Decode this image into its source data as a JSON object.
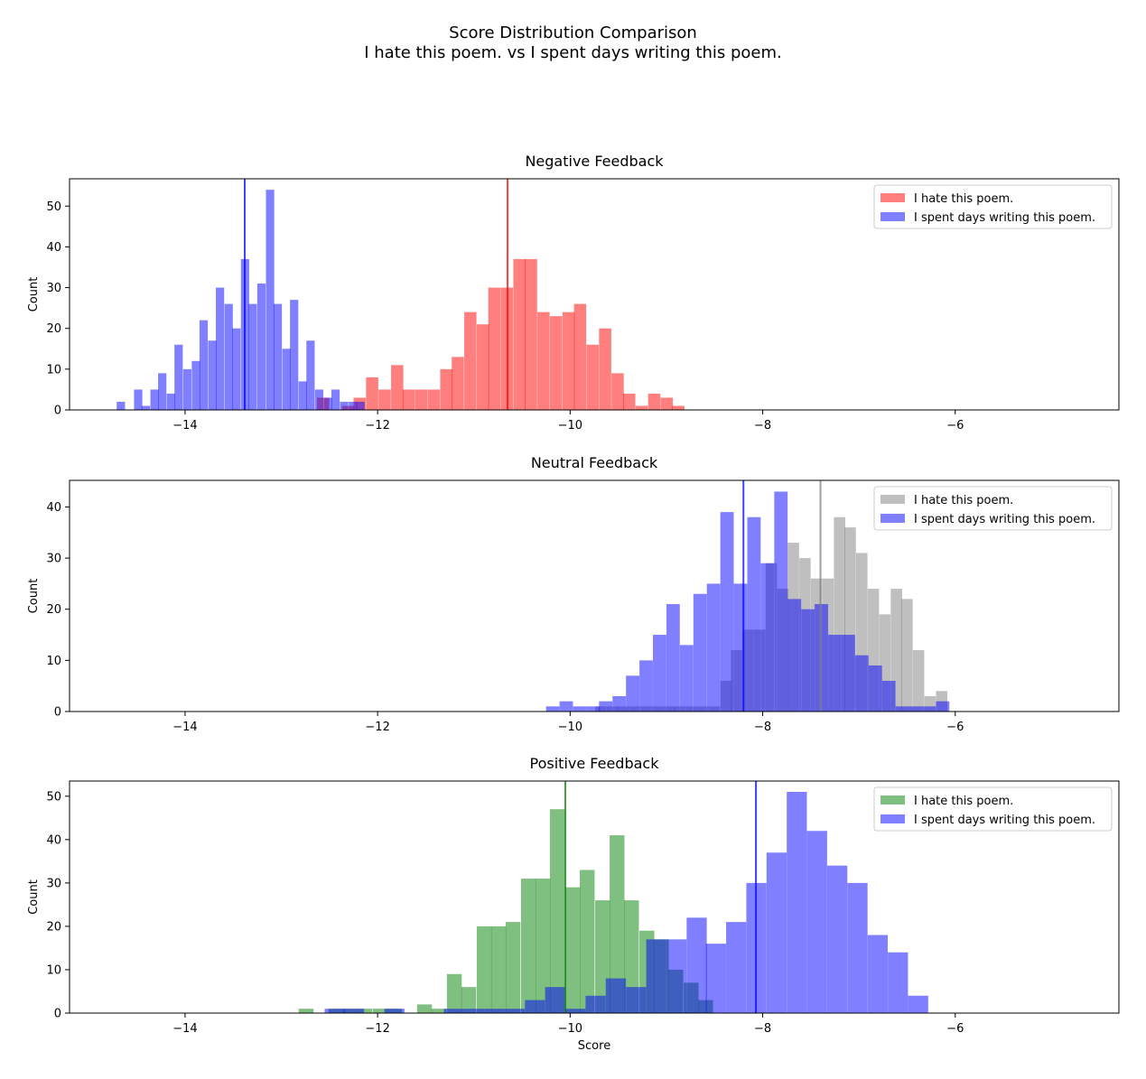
{
  "figure": {
    "title_line1": "Score Distribution Comparison",
    "title_line2": "I hate this poem. vs I spent days writing this poem.",
    "xlabel": "Score"
  },
  "chart_data": [
    {
      "type": "bar",
      "title": "Negative Feedback",
      "ylabel": "Count",
      "xlim": [
        -15.2,
        -4.3
      ],
      "ylim": [
        0,
        56.7
      ],
      "xticks": [
        -14,
        -12,
        -10,
        -8,
        -6
      ],
      "yticks": [
        0,
        10,
        20,
        30,
        40,
        50
      ],
      "legend_position": "top-right",
      "series": [
        {
          "name": "I hate this poem.",
          "color": "#ff0000",
          "alpha": 0.5,
          "mean": -10.65,
          "bin_width": 0.127,
          "bins": [
            [
              -12.63,
              3
            ],
            [
              -12.37,
              1
            ],
            [
              -12.25,
              3
            ],
            [
              -12.12,
              8
            ],
            [
              -11.99,
              5
            ],
            [
              -11.86,
              11
            ],
            [
              -11.74,
              5
            ],
            [
              -11.61,
              5
            ],
            [
              -11.48,
              5
            ],
            [
              -11.35,
              10
            ],
            [
              -11.23,
              13
            ],
            [
              -11.1,
              24
            ],
            [
              -10.97,
              21
            ],
            [
              -10.85,
              30
            ],
            [
              -10.72,
              30
            ],
            [
              -10.59,
              37
            ],
            [
              -10.47,
              37
            ],
            [
              -10.34,
              24
            ],
            [
              -10.21,
              23
            ],
            [
              -10.08,
              24
            ],
            [
              -9.96,
              26
            ],
            [
              -9.83,
              16
            ],
            [
              -9.7,
              20
            ],
            [
              -9.57,
              9
            ],
            [
              -9.45,
              4
            ],
            [
              -9.32,
              1
            ],
            [
              -9.19,
              4
            ],
            [
              -9.06,
              3
            ],
            [
              -8.94,
              1
            ]
          ]
        },
        {
          "name": "I spent days writing this poem.",
          "color": "#0000ff",
          "alpha": 0.5,
          "mean": -13.38,
          "bin_width": 0.086,
          "bins": [
            [
              -14.71,
              2
            ],
            [
              -14.53,
              5
            ],
            [
              -14.45,
              1
            ],
            [
              -14.36,
              5
            ],
            [
              -14.28,
              9
            ],
            [
              -14.19,
              4
            ],
            [
              -14.11,
              16
            ],
            [
              -14.02,
              10
            ],
            [
              -13.93,
              12
            ],
            [
              -13.85,
              22
            ],
            [
              -13.76,
              17
            ],
            [
              -13.68,
              30
            ],
            [
              -13.59,
              26
            ],
            [
              -13.51,
              20
            ],
            [
              -13.42,
              37
            ],
            [
              -13.34,
              26
            ],
            [
              -13.25,
              31
            ],
            [
              -13.16,
              54
            ],
            [
              -13.08,
              26
            ],
            [
              -12.99,
              15
            ],
            [
              -12.91,
              27
            ],
            [
              -12.82,
              7
            ],
            [
              -12.74,
              17
            ],
            [
              -12.65,
              5
            ],
            [
              -12.56,
              3
            ],
            [
              -12.48,
              5
            ],
            [
              -12.39,
              2
            ],
            [
              -12.3,
              2
            ],
            [
              -12.22,
              2
            ]
          ]
        }
      ]
    },
    {
      "type": "bar",
      "title": "Neutral Feedback",
      "ylabel": "Count",
      "xlim": [
        -15.2,
        -4.3
      ],
      "ylim": [
        0,
        45.2
      ],
      "xticks": [
        -14,
        -12,
        -10,
        -8,
        -6
      ],
      "yticks": [
        0,
        10,
        20,
        30,
        40
      ],
      "legend_position": "top-right",
      "series": [
        {
          "name": "I hate this poem.",
          "color": "#808080",
          "alpha": 0.5,
          "mean": -7.4,
          "bin_width": 0.118,
          "bins": [
            [
              -9.74,
              1
            ],
            [
              -9.62,
              1
            ],
            [
              -9.51,
              1
            ],
            [
              -9.39,
              1
            ],
            [
              -9.27,
              1
            ],
            [
              -9.15,
              1
            ],
            [
              -9.03,
              1
            ],
            [
              -8.92,
              1
            ],
            [
              -8.8,
              1
            ],
            [
              -8.68,
              1
            ],
            [
              -8.56,
              1
            ],
            [
              -8.44,
              6
            ],
            [
              -8.33,
              12
            ],
            [
              -8.21,
              16
            ],
            [
              -8.09,
              16
            ],
            [
              -7.97,
              29
            ],
            [
              -7.85,
              24
            ],
            [
              -7.74,
              33
            ],
            [
              -7.62,
              30
            ],
            [
              -7.5,
              26
            ],
            [
              -7.38,
              26
            ],
            [
              -7.26,
              38
            ],
            [
              -7.15,
              36
            ],
            [
              -7.03,
              31
            ],
            [
              -6.91,
              24
            ],
            [
              -6.79,
              19
            ],
            [
              -6.67,
              24
            ],
            [
              -6.56,
              22
            ],
            [
              -6.44,
              12
            ],
            [
              -6.32,
              3
            ],
            [
              -6.2,
              4
            ]
          ]
        },
        {
          "name": "I spent days writing this poem.",
          "color": "#0000ff",
          "alpha": 0.5,
          "mean": -8.2,
          "bin_width": 0.139,
          "bins": [
            [
              -10.25,
              1
            ],
            [
              -10.11,
              2
            ],
            [
              -9.97,
              1
            ],
            [
              -9.83,
              1
            ],
            [
              -9.7,
              2
            ],
            [
              -9.56,
              3
            ],
            [
              -9.42,
              7
            ],
            [
              -9.28,
              10
            ],
            [
              -9.14,
              15
            ],
            [
              -9.0,
              21
            ],
            [
              -8.86,
              13
            ],
            [
              -8.72,
              23
            ],
            [
              -8.58,
              25
            ],
            [
              -8.44,
              39
            ],
            [
              -8.3,
              25
            ],
            [
              -8.16,
              38
            ],
            [
              -8.02,
              29
            ],
            [
              -7.88,
              43
            ],
            [
              -7.74,
              22
            ],
            [
              -7.6,
              20
            ],
            [
              -7.46,
              21
            ],
            [
              -7.32,
              15
            ],
            [
              -7.18,
              15
            ],
            [
              -7.04,
              11
            ],
            [
              -6.9,
              9
            ],
            [
              -6.76,
              6
            ],
            [
              -6.62,
              1
            ],
            [
              -6.48,
              1
            ],
            [
              -6.34,
              1
            ],
            [
              -6.2,
              2
            ]
          ]
        }
      ]
    },
    {
      "type": "bar",
      "title": "Positive Feedback",
      "ylabel": "Count",
      "xlim": [
        -15.2,
        -4.3
      ],
      "ylim": [
        0,
        53.5
      ],
      "xticks": [
        -14,
        -12,
        -10,
        -8,
        -6
      ],
      "yticks": [
        0,
        10,
        20,
        30,
        40,
        50
      ],
      "legend_position": "top-right",
      "series": [
        {
          "name": "I hate this poem.",
          "color": "#008000",
          "alpha": 0.5,
          "mean": -10.05,
          "bin_width": 0.154,
          "bins": [
            [
              -12.82,
              1
            ],
            [
              -12.67,
              0
            ],
            [
              -12.51,
              1
            ],
            [
              -12.36,
              1
            ],
            [
              -12.21,
              1
            ],
            [
              -12.05,
              1
            ],
            [
              -11.9,
              1
            ],
            [
              -11.74,
              0
            ],
            [
              -11.59,
              2
            ],
            [
              -11.44,
              1
            ],
            [
              -11.28,
              9
            ],
            [
              -11.13,
              6
            ],
            [
              -10.97,
              20
            ],
            [
              -10.82,
              20
            ],
            [
              -10.67,
              21
            ],
            [
              -10.51,
              31
            ],
            [
              -10.36,
              31
            ],
            [
              -10.21,
              47
            ],
            [
              -10.05,
              29
            ],
            [
              -9.9,
              33
            ],
            [
              -9.74,
              26
            ],
            [
              -9.59,
              41
            ],
            [
              -9.44,
              26
            ],
            [
              -9.28,
              19
            ],
            [
              -9.13,
              17
            ],
            [
              -8.98,
              10
            ],
            [
              -8.82,
              7
            ],
            [
              -8.67,
              3
            ]
          ]
        },
        {
          "name": "I spent days writing this poem.",
          "color": "#0000ff",
          "alpha": 0.5,
          "mean": -8.07,
          "bin_width": 0.209,
          "bins": [
            [
              -12.55,
              1
            ],
            [
              -12.35,
              1
            ],
            [
              -11.93,
              1
            ],
            [
              -11.31,
              1
            ],
            [
              -11.1,
              1
            ],
            [
              -10.89,
              1
            ],
            [
              -10.68,
              1
            ],
            [
              -10.47,
              3
            ],
            [
              -10.26,
              6
            ],
            [
              -10.05,
              1
            ],
            [
              -9.84,
              4
            ],
            [
              -9.63,
              8
            ],
            [
              -9.42,
              6
            ],
            [
              -9.21,
              17
            ],
            [
              -9.0,
              17
            ],
            [
              -8.79,
              22
            ],
            [
              -8.59,
              16
            ],
            [
              -8.38,
              21
            ],
            [
              -8.17,
              30
            ],
            [
              -7.96,
              37
            ],
            [
              -7.75,
              51
            ],
            [
              -7.54,
              42
            ],
            [
              -7.33,
              34
            ],
            [
              -7.12,
              30
            ],
            [
              -6.91,
              18
            ],
            [
              -6.7,
              14
            ],
            [
              -6.49,
              4
            ]
          ]
        }
      ]
    }
  ]
}
